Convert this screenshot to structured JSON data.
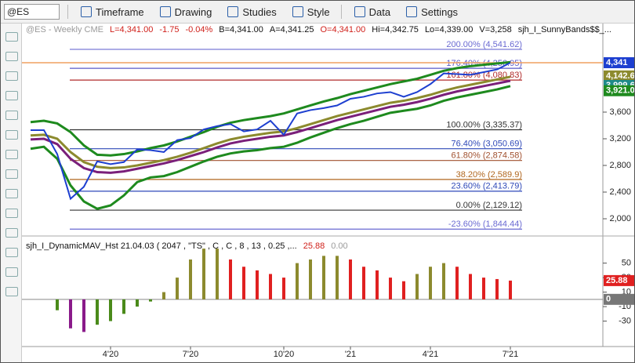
{
  "toolbar": {
    "symbol": "@ES",
    "menus": [
      "Timeframe",
      "Drawing",
      "Studies",
      "Style",
      "Data",
      "Settings"
    ]
  },
  "chart_data": [
    {
      "type": "line",
      "header": [
        {
          "text": "@ES - Weekly  CME",
          "color": "#9a9a9a"
        },
        {
          "text": "L=4,341.00",
          "color": "#d0201a"
        },
        {
          "text": "-1.75",
          "color": "#d0201a"
        },
        {
          "text": "-0.04%",
          "color": "#d0201a"
        },
        {
          "text": "B=4,341.00",
          "color": "#111"
        },
        {
          "text": "A=4,341.25",
          "color": "#111"
        },
        {
          "text": "O=4,341.00",
          "color": "#d0201a"
        },
        {
          "text": "Hi=4,342.75",
          "color": "#111"
        },
        {
          "text": "Lo=4,339.00",
          "color": "#111"
        },
        {
          "text": "V=3,258",
          "color": "#111"
        },
        {
          "text": "sjh_I_SunnyBands$$_...",
          "color": "#111"
        }
      ],
      "categories": [
        null,
        null,
        null,
        null,
        null,
        null,
        "4'20",
        null,
        null,
        null,
        null,
        null,
        "7'20",
        null,
        null,
        null,
        null,
        null,
        null,
        "10'20",
        null,
        null,
        null,
        null,
        "'21",
        null,
        null,
        null,
        null,
        null,
        "4'21",
        null,
        null,
        null,
        null,
        null,
        "7'21"
      ],
      "series": [
        {
          "color": "#1e8a1e",
          "width": 3,
          "values": [
            3450,
            3470,
            3430,
            3300,
            3100,
            2960,
            2950,
            2970,
            3010,
            3060,
            3100,
            3160,
            3230,
            3300,
            3380,
            3440,
            3480,
            3510,
            3540,
            3580,
            3640,
            3700,
            3760,
            3810,
            3870,
            3920,
            3970,
            4020,
            4060,
            4100,
            4160,
            4220,
            4260,
            4290,
            4310,
            4330,
            4350
          ]
        },
        {
          "color": "#1e8a1e",
          "width": 3,
          "values": [
            3050,
            3080,
            2900,
            2500,
            2260,
            2150,
            2200,
            2350,
            2550,
            2620,
            2640,
            2700,
            2780,
            2860,
            2930,
            2980,
            3010,
            3030,
            3060,
            3080,
            3140,
            3220,
            3290,
            3360,
            3420,
            3470,
            3530,
            3590,
            3620,
            3650,
            3700,
            3770,
            3820,
            3860,
            3900,
            3940,
            3990
          ]
        },
        {
          "color": "#8c8a2e",
          "width": 3,
          "values": [
            3250,
            3260,
            3200,
            3000,
            2850,
            2780,
            2760,
            2770,
            2800,
            2840,
            2880,
            2930,
            2990,
            3060,
            3130,
            3190,
            3230,
            3260,
            3290,
            3310,
            3360,
            3420,
            3480,
            3540,
            3590,
            3640,
            3690,
            3740,
            3770,
            3810,
            3860,
            3920,
            3970,
            4010,
            4050,
            4090,
            4130
          ]
        },
        {
          "color": "#7a1f7a",
          "width": 3,
          "values": [
            3190,
            3200,
            3120,
            2900,
            2760,
            2700,
            2690,
            2710,
            2750,
            2790,
            2830,
            2880,
            2940,
            3000,
            3070,
            3130,
            3170,
            3200,
            3230,
            3250,
            3300,
            3360,
            3420,
            3480,
            3530,
            3580,
            3630,
            3680,
            3710,
            3750,
            3800,
            3860,
            3910,
            3950,
            3990,
            4030,
            4070
          ]
        },
        {
          "color": "#1d3fd0",
          "width": 2,
          "values": [
            3330,
            3330,
            2970,
            2300,
            2480,
            2860,
            2820,
            2850,
            3040,
            3030,
            3000,
            3180,
            3210,
            3340,
            3390,
            3420,
            3310,
            3340,
            3470,
            3260,
            3580,
            3630,
            3660,
            3700,
            3800,
            3830,
            3880,
            3900,
            3830,
            3900,
            4020,
            4180,
            4170,
            4160,
            4200,
            4240,
            4341
          ]
        }
      ],
      "levels": [
        {
          "value": 4541.62,
          "label": "200.00% (4,541.62)",
          "color": "#6a6ad2"
        },
        {
          "value": 4256.95,
          "label": "176.40% (4,256.95)",
          "color": "#5a5ac8"
        },
        {
          "value": 4080.83,
          "label": "161.80% (4,080.83)",
          "color": "#b02a2a"
        },
        {
          "value": 3335.37,
          "label": "100.00% (3,335.37)",
          "color": "#333333"
        },
        {
          "value": 3050.69,
          "label": "76.40% (3,050.69)",
          "color": "#2f49b8"
        },
        {
          "value": 2874.58,
          "label": "61.80% (2,874.58)",
          "color": "#a0502e"
        },
        {
          "value": 2589.9,
          "label": "38.20% (2,589.9)",
          "color": "#b0661e"
        },
        {
          "value": 2413.79,
          "label": "23.60% (2,413.79)",
          "color": "#2f49b8"
        },
        {
          "value": 2129.12,
          "label": "0.00% (2,129.12)",
          "color": "#333333"
        },
        {
          "value": 1844.44,
          "label": "-23.60% (1,844.44)",
          "color": "#6a6ad2"
        }
      ],
      "price_labels": [
        {
          "value": 4341,
          "label": "4,341",
          "color": "#1d3fd0"
        },
        {
          "value": 4142.6,
          "label": "4,142.6",
          "color": "#8c8a2e"
        },
        {
          "value": 3999.6,
          "label": "3,999.6",
          "color": "#1e8a8a"
        },
        {
          "value": 3921,
          "label": "3,921.0",
          "color": "#1e8a1e"
        }
      ],
      "ylim": [
        1765,
        4729
      ],
      "yticks": [
        {
          "value": 2000,
          "label": "2,000"
        },
        {
          "value": 2400,
          "label": "2,400"
        },
        {
          "value": 2800,
          "label": "2,800"
        },
        {
          "value": 3200,
          "label": "3,200"
        },
        {
          "value": 3600,
          "label": "3,600"
        }
      ],
      "last_price_color": "#f0a060"
    },
    {
      "type": "histogram",
      "header": [
        {
          "text": "sjh_I_DynamicMAV_Hst 21.04.03 ( 2047 , \"TS\" , C , C , 8 , 13 , 0.25 ,...",
          "color": "#111"
        },
        {
          "text": "25.88",
          "color": "#d0201a"
        },
        {
          "text": "0.00",
          "color": "#9a9a9a"
        }
      ],
      "values": [
        null,
        null,
        -15,
        -40,
        -45,
        -35,
        -30,
        -20,
        -10,
        -3,
        10,
        30,
        55,
        70,
        70,
        55,
        45,
        40,
        35,
        30,
        50,
        55,
        60,
        60,
        55,
        45,
        40,
        30,
        25,
        35,
        45,
        50,
        45,
        35,
        30,
        28,
        25.88
      ],
      "price_labels": [
        {
          "value": 25.88,
          "label": "25.88",
          "color": "#e02020"
        },
        {
          "value": 0,
          "label": "0",
          "color": "#777777"
        }
      ],
      "ylim": [
        -64,
        82
      ],
      "yticks": [
        50,
        30,
        10,
        -10,
        -30
      ],
      "rising_color": "#8c8a2e",
      "falling_color": "#e02020",
      "neg_falling_color": "#8a1a8a",
      "neg_rising_color": "#4a8a1a"
    }
  ]
}
